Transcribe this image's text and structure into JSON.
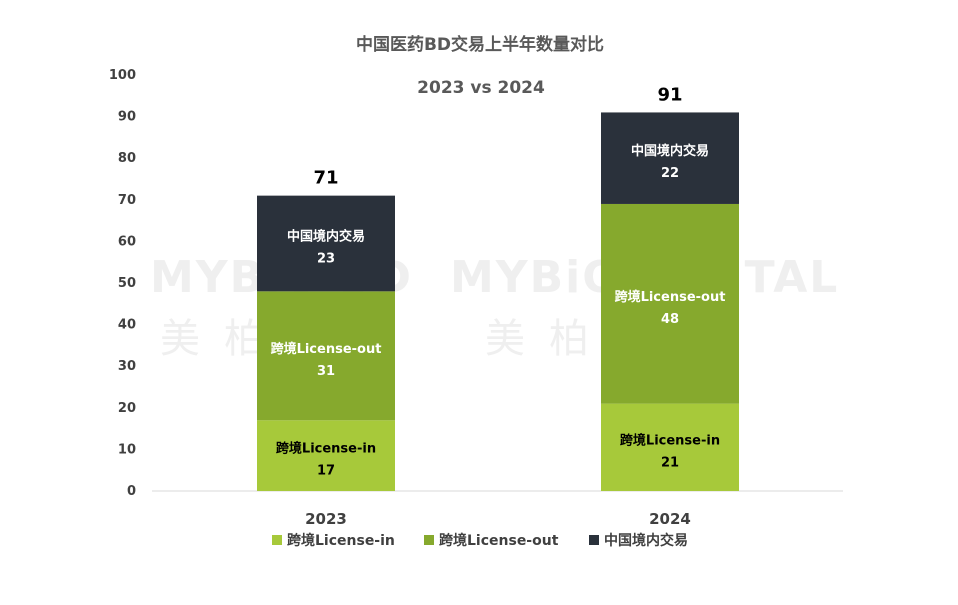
{
  "chart_data": {
    "type": "bar",
    "stacked": true,
    "title": "中国医药BD交易上半年数量对比",
    "subtitle": "2023 vs 2024",
    "categories": [
      "2023",
      "2024"
    ],
    "totals": [
      71,
      91
    ],
    "series": [
      {
        "name": "跨境License-in",
        "values": [
          17,
          21
        ],
        "color": "#a7c93a",
        "label_color": "#000000"
      },
      {
        "name": "跨境License-out",
        "values": [
          31,
          48
        ],
        "color": "#86a92d",
        "label_color": "#ffffff"
      },
      {
        "name": "中国境内交易",
        "values": [
          23,
          22
        ],
        "color": "#2a313b",
        "label_color": "#ffffff"
      }
    ],
    "ylim": [
      0,
      100
    ],
    "yticks": [
      0,
      10,
      20,
      30,
      40,
      50,
      60,
      70,
      80,
      90,
      100
    ],
    "grid": false,
    "legend_position": "bottom"
  },
  "watermark": {
    "left_en": "MYBiO BD",
    "left_cn": "美柏必缔",
    "right_en": "MYBiOCAPITAL",
    "right_cn": "美柏资本"
  }
}
